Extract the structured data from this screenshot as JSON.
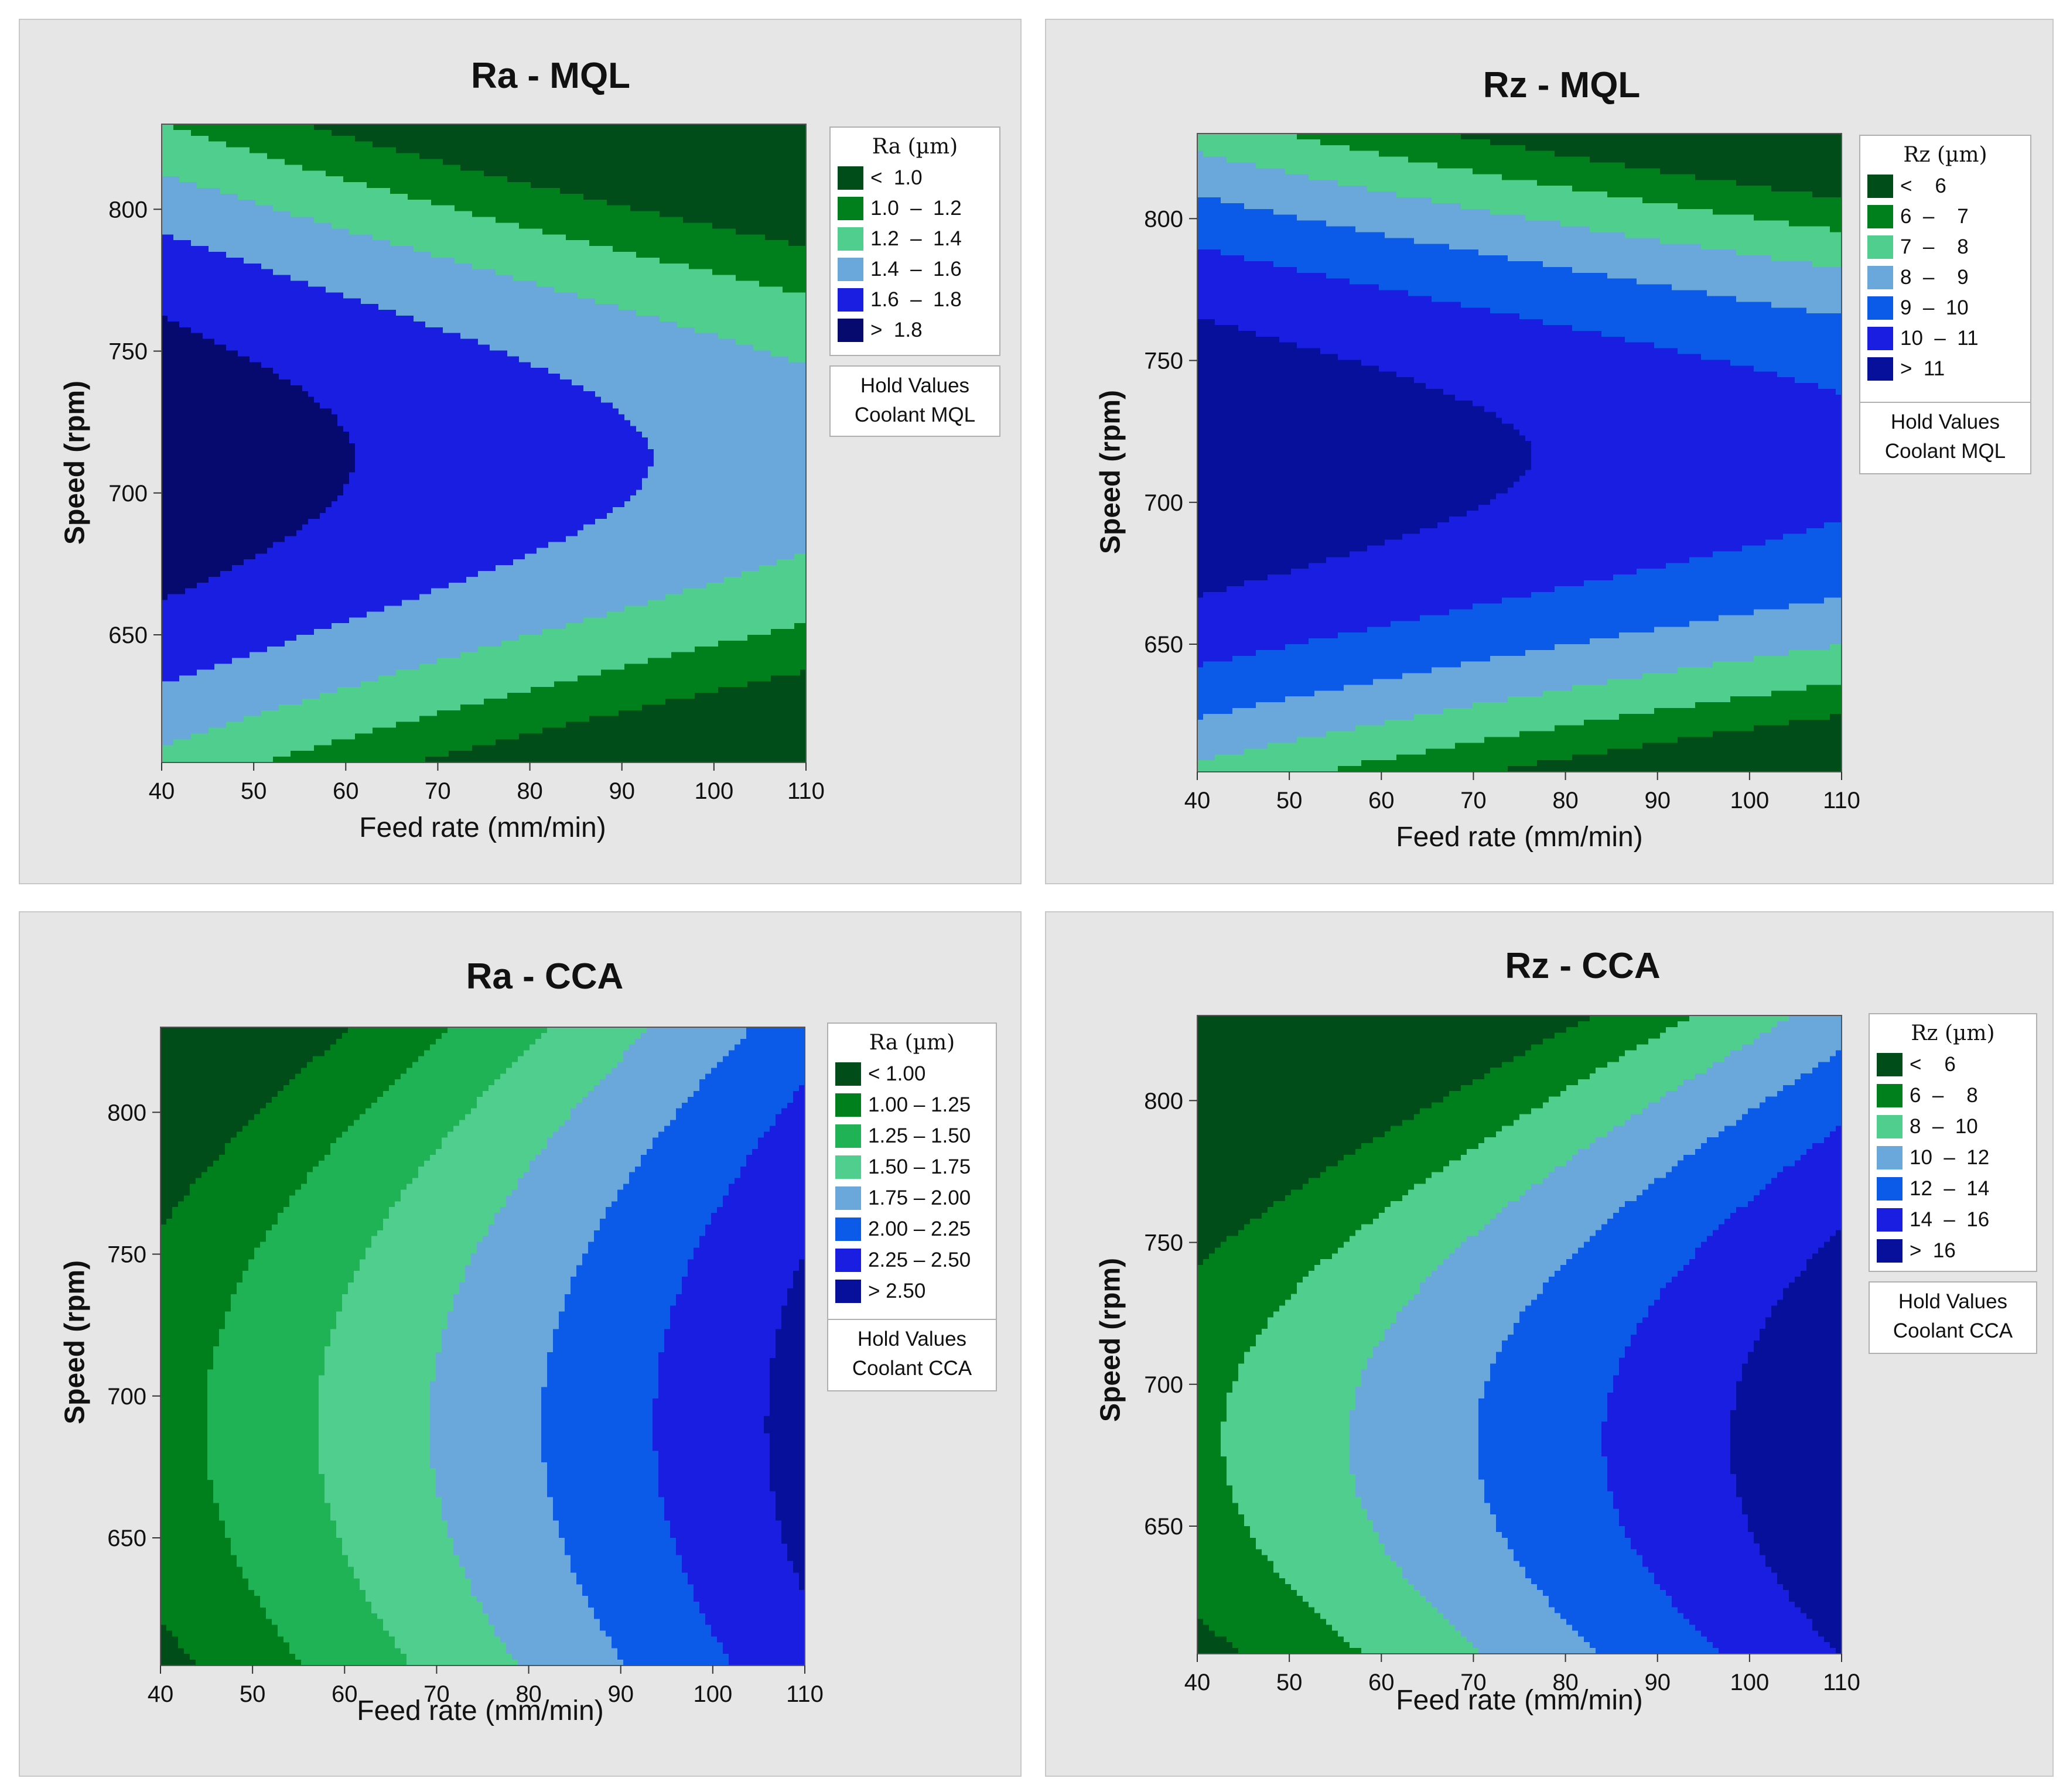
{
  "chart_data": [
    {
      "type": "contour",
      "title": "Ra - MQL",
      "xlabel": "Feed rate (mm/min)",
      "ylabel": "Speed (rpm)",
      "xlim": [
        40,
        110
      ],
      "ylim": [
        605,
        830
      ],
      "xticks": [
        "40",
        "50",
        "60",
        "70",
        "80",
        "90",
        "100",
        "110"
      ],
      "yticks": [
        "650",
        "700",
        "750",
        "800"
      ],
      "legend_title": "Ra (µm)",
      "levels": [
        {
          "label": "<  1.0",
          "color": "#004d1a"
        },
        {
          "label": "1.0  –  1.2",
          "color": "#00801c"
        },
        {
          "label": "1.2  –  1.4",
          "color": "#4fce8d"
        },
        {
          "label": "1.4  –  1.6",
          "color": "#6aa8dc"
        },
        {
          "label": "1.6  –  1.8",
          "color": "#1a1ee0"
        },
        {
          "label": ">  1.8",
          "color": "#060a6e"
        }
      ],
      "hold_title": "Hold Values",
      "hold_value": "Coolant  MQL"
    },
    {
      "type": "contour",
      "title": "Rz - MQL",
      "xlabel": "Feed rate (mm/min)",
      "ylabel": "Speed (rpm)",
      "xlim": [
        40,
        110
      ],
      "ylim": [
        605,
        830
      ],
      "xticks": [
        "40",
        "50",
        "60",
        "70",
        "80",
        "90",
        "100",
        "110"
      ],
      "yticks": [
        "650",
        "700",
        "750",
        "800"
      ],
      "legend_title": "Rz (µm)",
      "levels": [
        {
          "label": "<    6",
          "color": "#004d1a"
        },
        {
          "label": "6  –    7",
          "color": "#00801c"
        },
        {
          "label": "7  –    8",
          "color": "#4fce8d"
        },
        {
          "label": "8  –    9",
          "color": "#6aa8dc"
        },
        {
          "label": "9  –  10",
          "color": "#0b5ae8"
        },
        {
          "label": "10  –  11",
          "color": "#1a1ee0"
        },
        {
          "label": ">  11",
          "color": "#07109a"
        }
      ],
      "hold_title": "Hold Values",
      "hold_value": "Coolant  MQL"
    },
    {
      "type": "contour",
      "title": "Ra - CCA",
      "xlabel": "Feed rate (mm/min)",
      "ylabel": "Speed (rpm)",
      "xlim": [
        40,
        110
      ],
      "ylim": [
        605,
        830
      ],
      "xticks": [
        "40",
        "50",
        "60",
        "70",
        "80",
        "90",
        "100",
        "110"
      ],
      "yticks": [
        "650",
        "700",
        "750",
        "800"
      ],
      "legend_title": "Ra (µm)",
      "levels": [
        {
          "label": "< 1.00",
          "color": "#004d1a"
        },
        {
          "label": "1.00 – 1.25",
          "color": "#00801c"
        },
        {
          "label": "1.25 – 1.50",
          "color": "#1fb355"
        },
        {
          "label": "1.50 – 1.75",
          "color": "#4fce8d"
        },
        {
          "label": "1.75 – 2.00",
          "color": "#6aa8dc"
        },
        {
          "label": "2.00 – 2.25",
          "color": "#0b5ae8"
        },
        {
          "label": "2.25 – 2.50",
          "color": "#1a1ee0"
        },
        {
          "label": "> 2.50",
          "color": "#07109a"
        }
      ],
      "hold_title": "Hold Values",
      "hold_value": "Coolant CCA"
    },
    {
      "type": "contour",
      "title": "Rz - CCA",
      "xlabel": "Feed rate (mm/min)",
      "ylabel": "Speed (rpm)",
      "xlim": [
        40,
        110
      ],
      "ylim": [
        605,
        830
      ],
      "xticks": [
        "40",
        "50",
        "60",
        "70",
        "80",
        "90",
        "100",
        "110"
      ],
      "yticks": [
        "650",
        "700",
        "750",
        "800"
      ],
      "legend_title": "Rz (µm)",
      "levels": [
        {
          "label": "<    6",
          "color": "#004d1a"
        },
        {
          "label": "6  –    8",
          "color": "#00801c"
        },
        {
          "label": "8  –  10",
          "color": "#4fce8d"
        },
        {
          "label": "10  –  12",
          "color": "#6aa8dc"
        },
        {
          "label": "12  –  14",
          "color": "#0b5ae8"
        },
        {
          "label": "14  –  16",
          "color": "#1a1ee0"
        },
        {
          "label": ">  16",
          "color": "#07109a"
        }
      ],
      "hold_title": "Hold Values",
      "hold_value": "Coolant CCA"
    }
  ]
}
